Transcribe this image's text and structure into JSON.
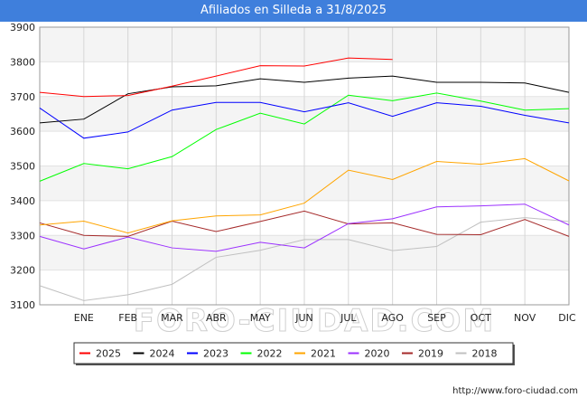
{
  "header": {
    "title": "Afiliados en Silleda a 31/8/2025"
  },
  "footer": {
    "url": "http://www.foro-ciudad.com"
  },
  "watermark": {
    "text": "FORO-CIUDAD.COM"
  },
  "chart_data": {
    "type": "line",
    "title": "Afiliados en Silleda a 31/8/2025",
    "xlabel": "",
    "ylabel": "",
    "categories": [
      "",
      "ENE",
      "FEB",
      "MAR",
      "ABR",
      "MAY",
      "JUN",
      "JUL",
      "AGO",
      "SEP",
      "OCT",
      "NOV",
      "DIC"
    ],
    "ylim": [
      3100,
      3900
    ],
    "yticks": [
      3100,
      3200,
      3300,
      3400,
      3500,
      3600,
      3700,
      3800,
      3900
    ],
    "grid": true,
    "legend_position": "bottom",
    "series": [
      {
        "name": "2025",
        "color": "#ff0000",
        "values": [
          3712,
          3700,
          3703,
          3730,
          3759,
          3789,
          3788,
          3811,
          3807,
          null,
          null,
          null,
          null
        ]
      },
      {
        "name": "2024",
        "color": "#000000",
        "values": [
          3624,
          3635,
          3708,
          3728,
          3731,
          3751,
          3741,
          3753,
          3759,
          3741,
          3741,
          3739,
          3712
        ]
      },
      {
        "name": "2023",
        "color": "#0000ff",
        "values": [
          3667,
          3580,
          3598,
          3661,
          3683,
          3683,
          3656,
          3682,
          3643,
          3682,
          3672,
          3646,
          3624
        ]
      },
      {
        "name": "2022",
        "color": "#00ff00",
        "values": [
          3456,
          3507,
          3492,
          3527,
          3605,
          3652,
          3621,
          3704,
          3688,
          3710,
          3687,
          3661,
          3665
        ]
      },
      {
        "name": "2021",
        "color": "#ffa500",
        "values": [
          3330,
          3341,
          3307,
          3342,
          3356,
          3359,
          3393,
          3488,
          3461,
          3513,
          3505,
          3521,
          3457
        ]
      },
      {
        "name": "2020",
        "color": "#9b30ff",
        "values": [
          3297,
          3261,
          3295,
          3264,
          3254,
          3280,
          3264,
          3334,
          3348,
          3382,
          3385,
          3390,
          3330
        ]
      },
      {
        "name": "2019",
        "color": "#a52a2a",
        "values": [
          3336,
          3300,
          3297,
          3341,
          3311,
          3340,
          3370,
          3333,
          3336,
          3303,
          3302,
          3346,
          3297
        ]
      },
      {
        "name": "2018",
        "color": "#c0c0c0",
        "values": [
          3155,
          3112,
          3129,
          3159,
          3237,
          3257,
          3288,
          3288,
          3256,
          3268,
          3338,
          3351,
          3340
        ]
      }
    ]
  }
}
